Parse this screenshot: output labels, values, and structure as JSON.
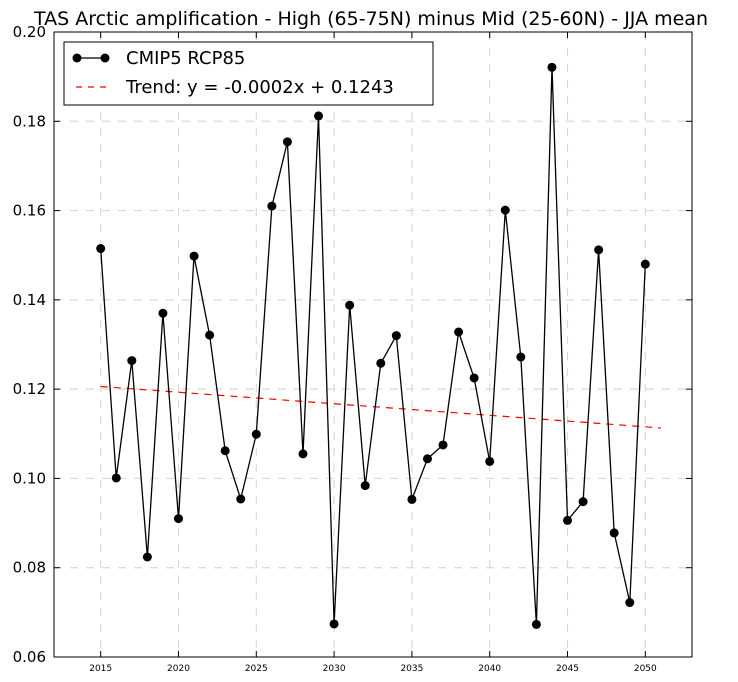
{
  "chart_data": {
    "type": "line",
    "title": "TAS Arctic amplification - High (65-75N) minus Mid (25-60N) - JJA mean",
    "xlabel": "",
    "ylabel": "",
    "xlim": [
      2012,
      2053
    ],
    "ylim": [
      0.06,
      0.2
    ],
    "grid": true,
    "legend_position": "top-left",
    "x_ticks": [
      "2015",
      "2020",
      "2025",
      "2030",
      "2035",
      "2040",
      "2045",
      "2050"
    ],
    "y_ticks": [
      "0.06",
      "0.08",
      "0.10",
      "0.12",
      "0.14",
      "0.16",
      "0.18",
      "0.20"
    ],
    "series": [
      {
        "name": "CMIP5 RCP85",
        "color": "#000000",
        "style": "solid-with-markers",
        "x": [
          2015,
          2016,
          2017,
          2018,
          2019,
          2020,
          2021,
          2022,
          2023,
          2024,
          2025,
          2026,
          2027,
          2028,
          2029,
          2030,
          2031,
          2032,
          2033,
          2034,
          2035,
          2036,
          2037,
          2038,
          2039,
          2040,
          2041,
          2042,
          2043,
          2044,
          2045,
          2046,
          2047,
          2048,
          2049,
          2050
        ],
        "y": [
          0.1515,
          0.1001,
          0.1264,
          0.0824,
          0.137,
          0.091,
          0.1498,
          0.1321,
          0.1062,
          0.0954,
          0.1099,
          0.161,
          0.1754,
          0.1055,
          0.1812,
          0.0674,
          0.1388,
          0.0984,
          0.1258,
          0.132,
          0.0953,
          0.1044,
          0.1075,
          0.1328,
          0.1225,
          0.1038,
          0.1601,
          0.1272,
          0.0673,
          0.1921,
          0.0906,
          0.0948,
          0.1512,
          0.0878,
          0.0722,
          0.148
        ]
      },
      {
        "name": "Trend: y = -0.0002x + 0.1243",
        "color": "#ff0000",
        "style": "dashed",
        "x": [
          2015,
          2051
        ],
        "y": [
          0.1206,
          0.1113
        ]
      }
    ]
  }
}
